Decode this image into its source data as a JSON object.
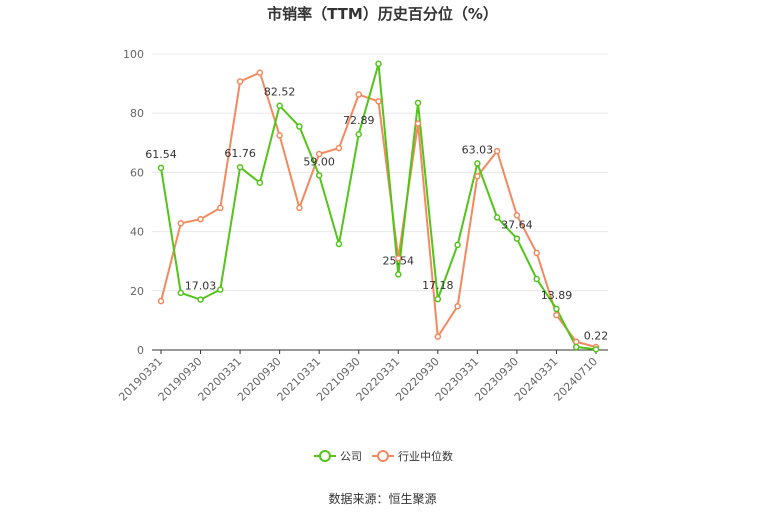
{
  "chart_data": {
    "type": "line",
    "title": "市销率（TTM）历史百分位（%）",
    "source": "数据来源：恒生聚源",
    "ylim": [
      0,
      100
    ],
    "yticks": [
      0,
      20,
      40,
      60,
      80,
      100
    ],
    "x": [
      "20190331",
      "",
      "20190930",
      "",
      "20200331",
      "",
      "20200930",
      "",
      "20210331",
      "",
      "20210930",
      "",
      "20220331",
      "",
      "20220930",
      "",
      "20230331",
      "",
      "20230930",
      "",
      "20240331",
      "",
      "20240710"
    ],
    "xtick_labels": [
      "20190331",
      "20190930",
      "20200331",
      "20200930",
      "20210331",
      "20210930",
      "20220331",
      "20220930",
      "20230331",
      "20230930",
      "20240331",
      "20240710"
    ],
    "series": [
      {
        "name": "公司",
        "color": "#52c41a",
        "values": [
          61.54,
          19.3,
          17.03,
          20.4,
          61.76,
          56.5,
          82.52,
          75.5,
          59.0,
          35.8,
          72.89,
          96.7,
          25.54,
          83.5,
          17.18,
          35.5,
          63.03,
          44.8,
          37.64,
          24.0,
          13.89,
          1.0,
          0.22
        ],
        "labels": {
          "0": "61.54",
          "2": "17.03",
          "4": "61.76",
          "6": "82.52",
          "8": "59.00",
          "10": "72.89",
          "12": "25.54",
          "14": "17.18",
          "16": "63.03",
          "18": "37.64",
          "20": "13.89",
          "22": "0.22"
        }
      },
      {
        "name": "行业中位数",
        "color": "#f4895f",
        "values": [
          16.5,
          42.8,
          44.2,
          48.0,
          90.7,
          93.7,
          72.5,
          48.0,
          66.2,
          68.2,
          86.3,
          84.0,
          31.0,
          76.5,
          4.5,
          14.8,
          58.7,
          67.2,
          45.5,
          32.8,
          11.8,
          2.8,
          1.0
        ]
      }
    ],
    "legend": "bottom-center"
  }
}
